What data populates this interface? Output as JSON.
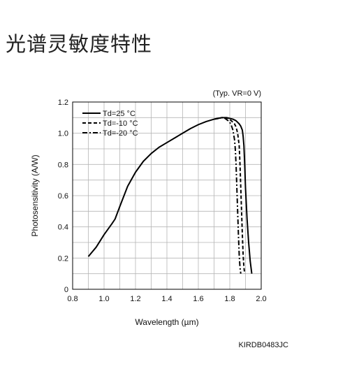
{
  "page": {
    "heading": "光谱灵敏度特性"
  },
  "chart_data": {
    "type": "line",
    "title": "",
    "xlabel": "Wavelength (µm)",
    "ylabel": "Photosensitivity (A/W)",
    "xlim": [
      0.8,
      2.0
    ],
    "ylim": [
      0,
      1.2
    ],
    "xticks": [
      "0.8",
      "1.0",
      "1.2",
      "1.4",
      "1.6",
      "1.8",
      "2.0"
    ],
    "yticks": [
      "0",
      "0.2",
      "0.4",
      "0.6",
      "0.8",
      "1.0",
      "1.2"
    ],
    "grid": true,
    "legend_position": "top-left",
    "condition_note": "(Typ. VR=0 V)",
    "figure_code": "KIRDB0483JC",
    "series": [
      {
        "name": "Td=25 °C",
        "style": "solid",
        "x": [
          0.9,
          0.95,
          1.0,
          1.05,
          1.07,
          1.1,
          1.15,
          1.2,
          1.25,
          1.3,
          1.35,
          1.4,
          1.45,
          1.5,
          1.55,
          1.6,
          1.65,
          1.7,
          1.72,
          1.75,
          1.78,
          1.8,
          1.82,
          1.84,
          1.86,
          1.87,
          1.88,
          1.885,
          1.89,
          1.895,
          1.9,
          1.91,
          1.92,
          1.93,
          1.94
        ],
        "y": [
          0.21,
          0.27,
          0.35,
          0.42,
          0.45,
          0.53,
          0.66,
          0.75,
          0.82,
          0.87,
          0.91,
          0.94,
          0.97,
          1.0,
          1.03,
          1.055,
          1.075,
          1.09,
          1.095,
          1.1,
          1.1,
          1.095,
          1.09,
          1.08,
          1.06,
          1.045,
          1.02,
          0.98,
          0.92,
          0.8,
          0.65,
          0.45,
          0.3,
          0.18,
          0.1
        ]
      },
      {
        "name": "Td=-10 °C",
        "style": "dashed",
        "x": [
          1.7,
          1.73,
          1.75,
          1.77,
          1.79,
          1.81,
          1.83,
          1.84,
          1.85,
          1.86,
          1.865,
          1.87,
          1.875,
          1.88,
          1.885,
          1.89,
          1.895
        ],
        "y": [
          1.09,
          1.095,
          1.1,
          1.1,
          1.095,
          1.08,
          1.06,
          1.04,
          1.0,
          0.92,
          0.8,
          0.65,
          0.5,
          0.35,
          0.22,
          0.14,
          0.1
        ]
      },
      {
        "name": "Td=-20 °C",
        "style": "dashdot",
        "x": [
          1.7,
          1.73,
          1.75,
          1.77,
          1.79,
          1.8,
          1.81,
          1.82,
          1.83,
          1.835,
          1.84,
          1.845,
          1.85,
          1.855,
          1.86,
          1.865,
          1.87
        ],
        "y": [
          1.09,
          1.095,
          1.1,
          1.095,
          1.08,
          1.07,
          1.05,
          1.02,
          0.96,
          0.9,
          0.8,
          0.65,
          0.5,
          0.35,
          0.22,
          0.14,
          0.1
        ]
      }
    ]
  }
}
